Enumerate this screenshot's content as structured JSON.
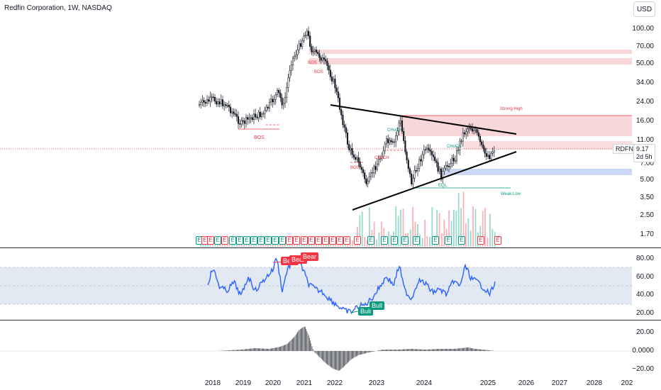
{
  "header": {
    "title": "Redfin Corporation, 1W, NASDAQ",
    "currency": "USD"
  },
  "price_axis": [
    "100.00",
    "70.00",
    "50.00",
    "34.00",
    "24.00",
    "16.00",
    "11.00",
    "7.00",
    "5.00",
    "3.50",
    "2.50",
    "1.70"
  ],
  "rsi_axis": [
    "80.00",
    "60.00",
    "40.00",
    "20.00"
  ],
  "osc_axis": [
    "20.00",
    "0.0000",
    "−20.00"
  ],
  "time_axis": [
    "2018",
    "2019",
    "2020",
    "2021",
    "2022",
    "2023",
    "2024",
    "2025",
    "2026",
    "2027",
    "2028",
    "202"
  ],
  "last_price": {
    "symbol": "RDFN",
    "value": "9.17",
    "countdown": "2d 5h"
  },
  "annotations": {
    "bos": "BOS",
    "choch": "CHoCH",
    "strong_high": "Strong High",
    "weak_low": "Weak Low",
    "eql": "EQL"
  },
  "signals": {
    "bear": "Bear",
    "bull": "Bull"
  },
  "earnings_badge": "E",
  "colors": {
    "candle": "#131722",
    "bear": "#f23645",
    "bull": "#089981",
    "rsi": "#2962ff",
    "band": "#dbe4ef",
    "zone_red": "#f5c6c9",
    "zone_blue": "#c4d4f5",
    "volume_green": "#22ab94",
    "volume_red": "#f7525f"
  }
}
